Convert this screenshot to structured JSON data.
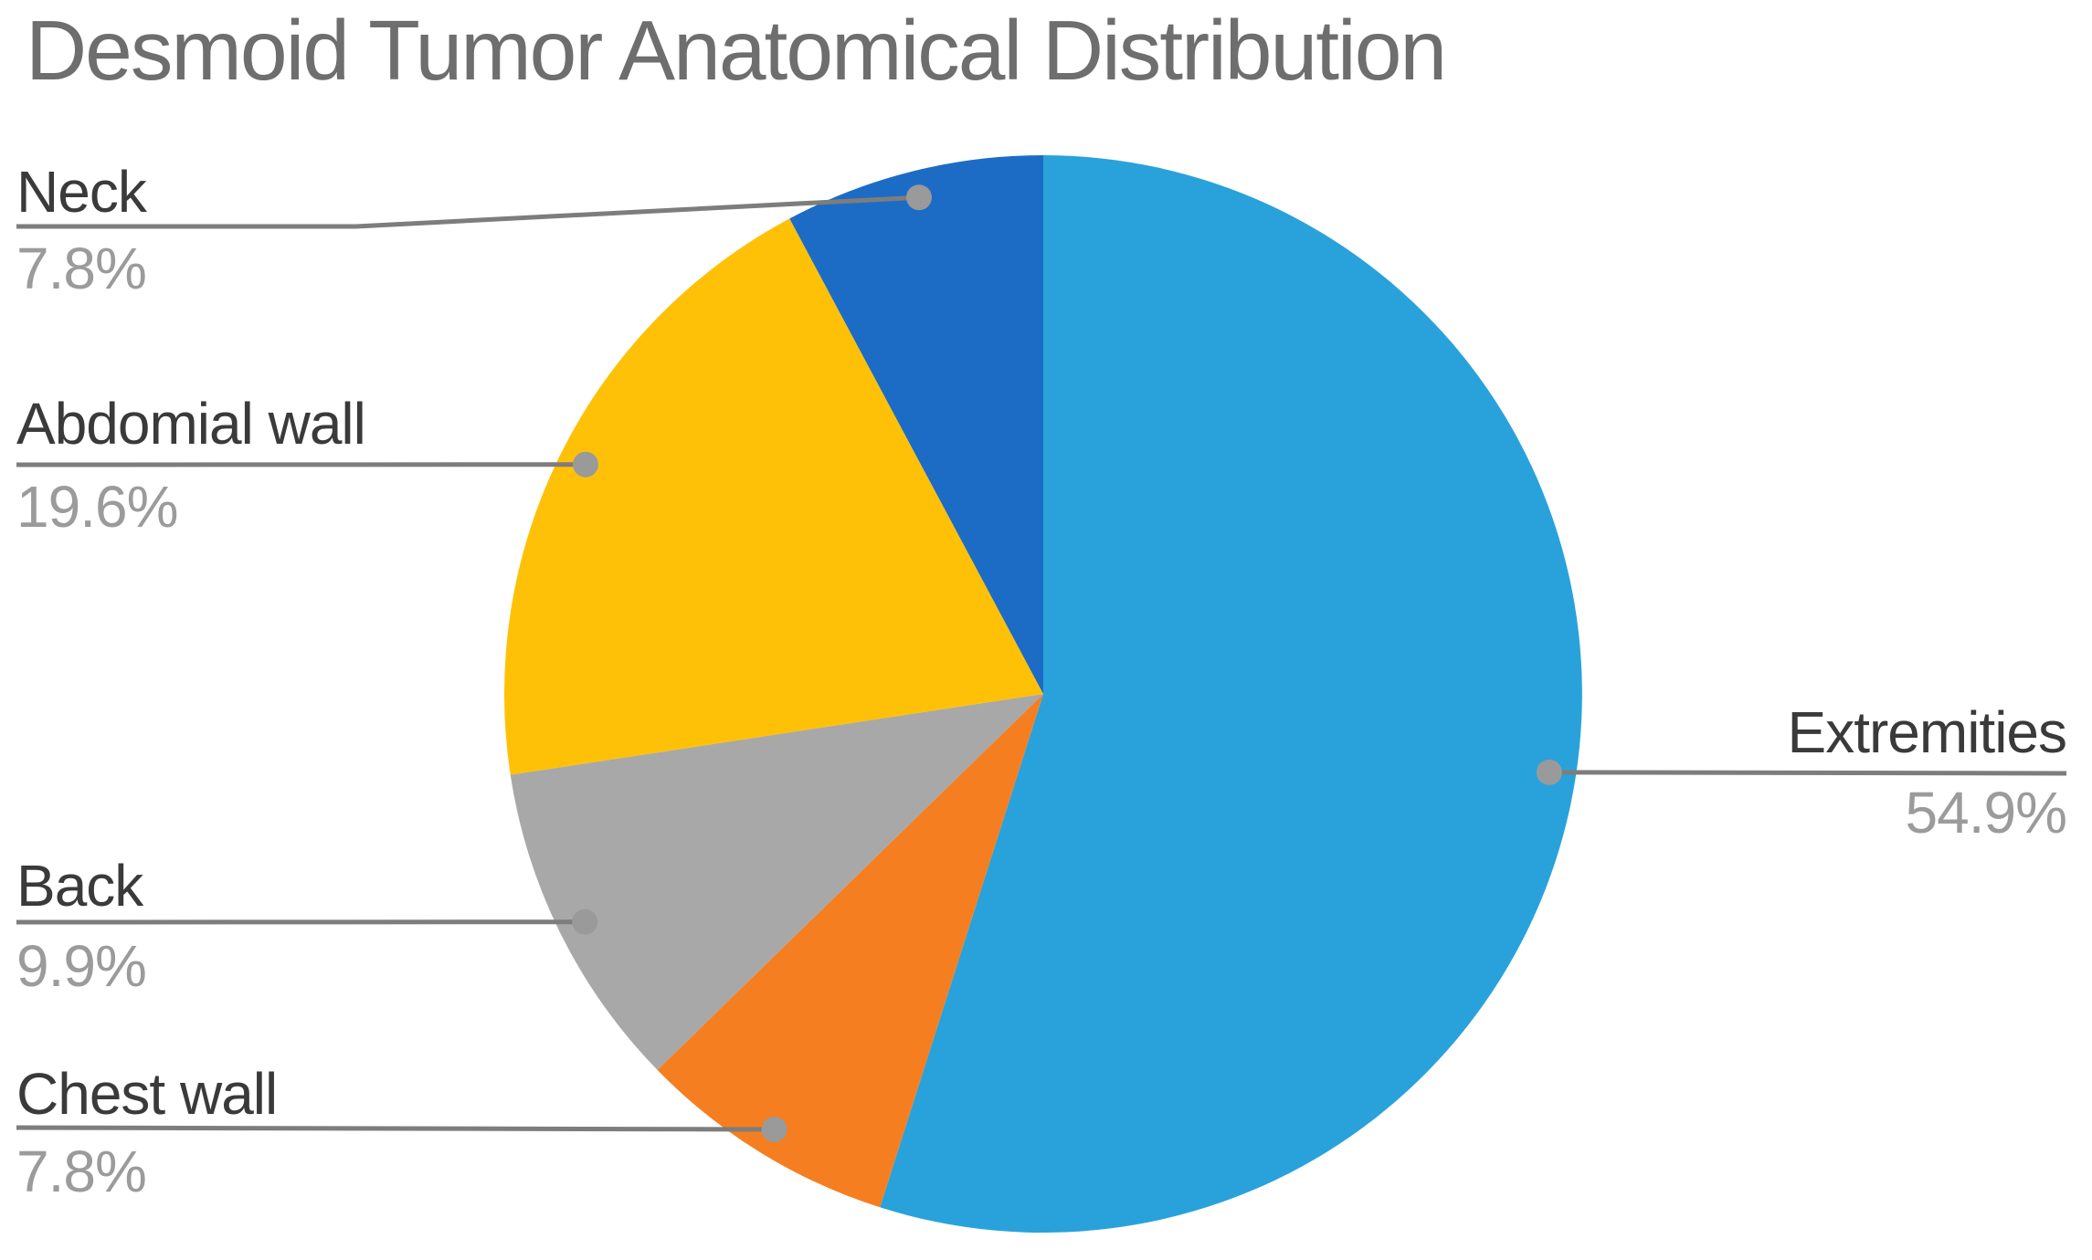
{
  "title": "Desmoid Tumor Anatomical Distribution",
  "chart_data": {
    "type": "pie",
    "title": "Desmoid Tumor Anatomical Distribution",
    "start_angle_deg": 0,
    "direction": "clockwise",
    "legend_position": "callout-labels",
    "slices": [
      {
        "label": "Extremities",
        "value": 54.9,
        "display": "54.9%",
        "color": "#29A2DB"
      },
      {
        "label": "Chest wall",
        "value": 7.8,
        "display": "7.8%",
        "color": "#F57E20"
      },
      {
        "label": "Back",
        "value": 9.9,
        "display": "9.9%",
        "color": "#A8A8A8"
      },
      {
        "label": "Abdomial wall",
        "value": 19.6,
        "display": "19.6%",
        "color": "#FFC107"
      },
      {
        "label": "Neck",
        "value": 7.8,
        "display": "7.8%",
        "color": "#1C6CC5"
      }
    ]
  },
  "colors": {
    "background": "#FFFFFF",
    "title_text": "#6E6E6E",
    "label_text": "#3A3A3A",
    "pct_text": "#9B9B9B",
    "leader_line": "#7D7D7D",
    "callout_dot": "#9A9A9A"
  }
}
